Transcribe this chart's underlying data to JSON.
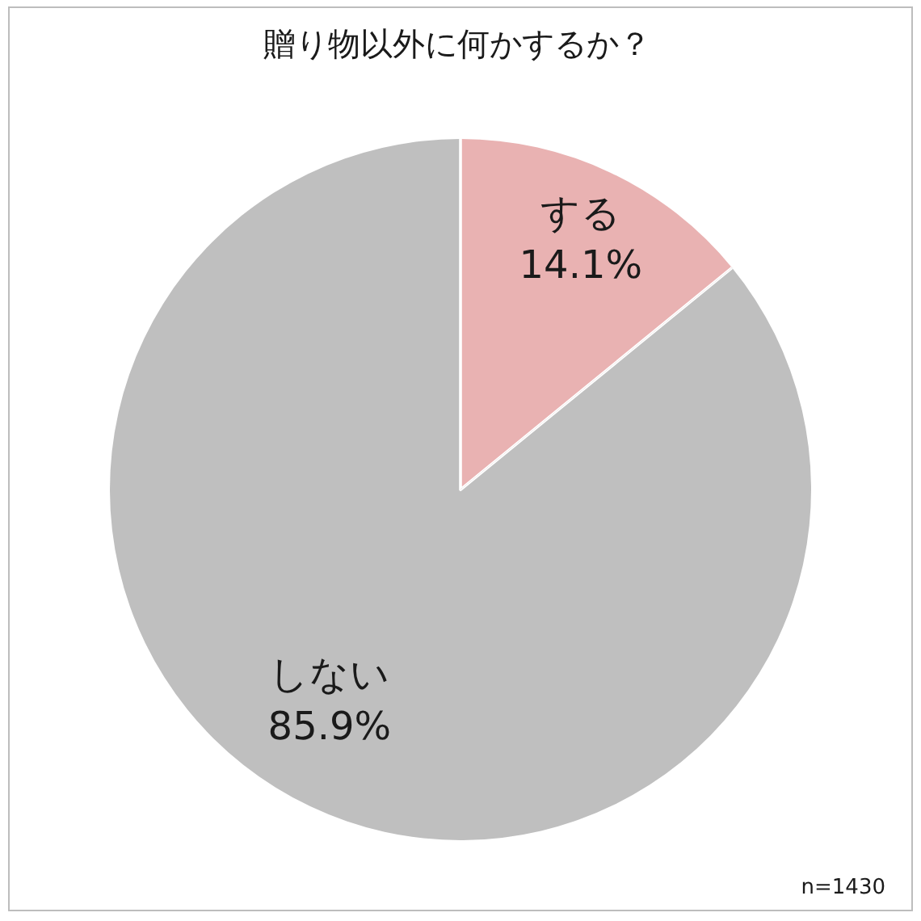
{
  "chart_data": {
    "type": "pie",
    "title": "贈り物以外に何かするか？",
    "categories": [
      "する",
      "しない"
    ],
    "values": [
      14.1,
      85.9
    ],
    "colors": [
      "#e9b2b2",
      "#bfbfbf"
    ],
    "value_labels": [
      "14.1%",
      "85.9%"
    ],
    "annotations": [
      "n=1430"
    ]
  }
}
